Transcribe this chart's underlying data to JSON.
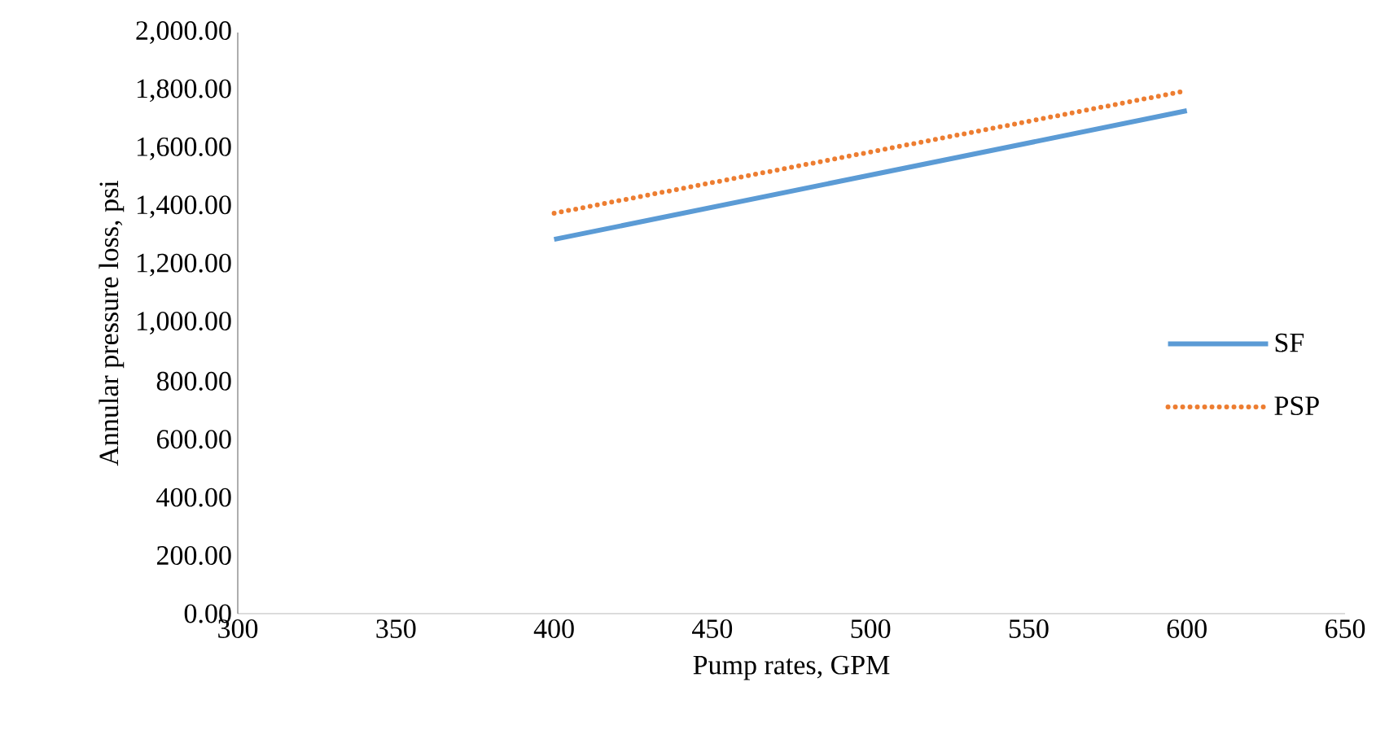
{
  "chart_data": {
    "type": "line",
    "xlabel": "Pump rates, GPM",
    "ylabel": "Annular pressure loss, psi",
    "x": [
      400,
      600
    ],
    "series": [
      {
        "name": "SF",
        "color": "#5b9bd5",
        "line_style": "solid",
        "values": [
          1288,
          1731
        ]
      },
      {
        "name": "PSP",
        "color": "#ed7d31",
        "line_style": "dotted",
        "values": [
          1378,
          1800
        ]
      }
    ],
    "xlim": [
      300,
      650
    ],
    "xticks": [
      300,
      350,
      400,
      450,
      500,
      550,
      600,
      650
    ],
    "ylim": [
      0,
      2000
    ],
    "yticks": [
      {
        "value": 0,
        "label": "0.00"
      },
      {
        "value": 200,
        "label": "200.00"
      },
      {
        "value": 400,
        "label": "400.00"
      },
      {
        "value": 600,
        "label": "600.00"
      },
      {
        "value": 800,
        "label": "800.00"
      },
      {
        "value": 1000,
        "label": "1,000.00"
      },
      {
        "value": 1200,
        "label": "1,200.00"
      },
      {
        "value": 1400,
        "label": "1,400.00"
      },
      {
        "value": 1600,
        "label": "1,600.00"
      },
      {
        "value": 1800,
        "label": "1,800.00"
      },
      {
        "value": 2000,
        "label": "2,000.00"
      }
    ],
    "grid": false,
    "legend": "right",
    "marker": "none"
  }
}
